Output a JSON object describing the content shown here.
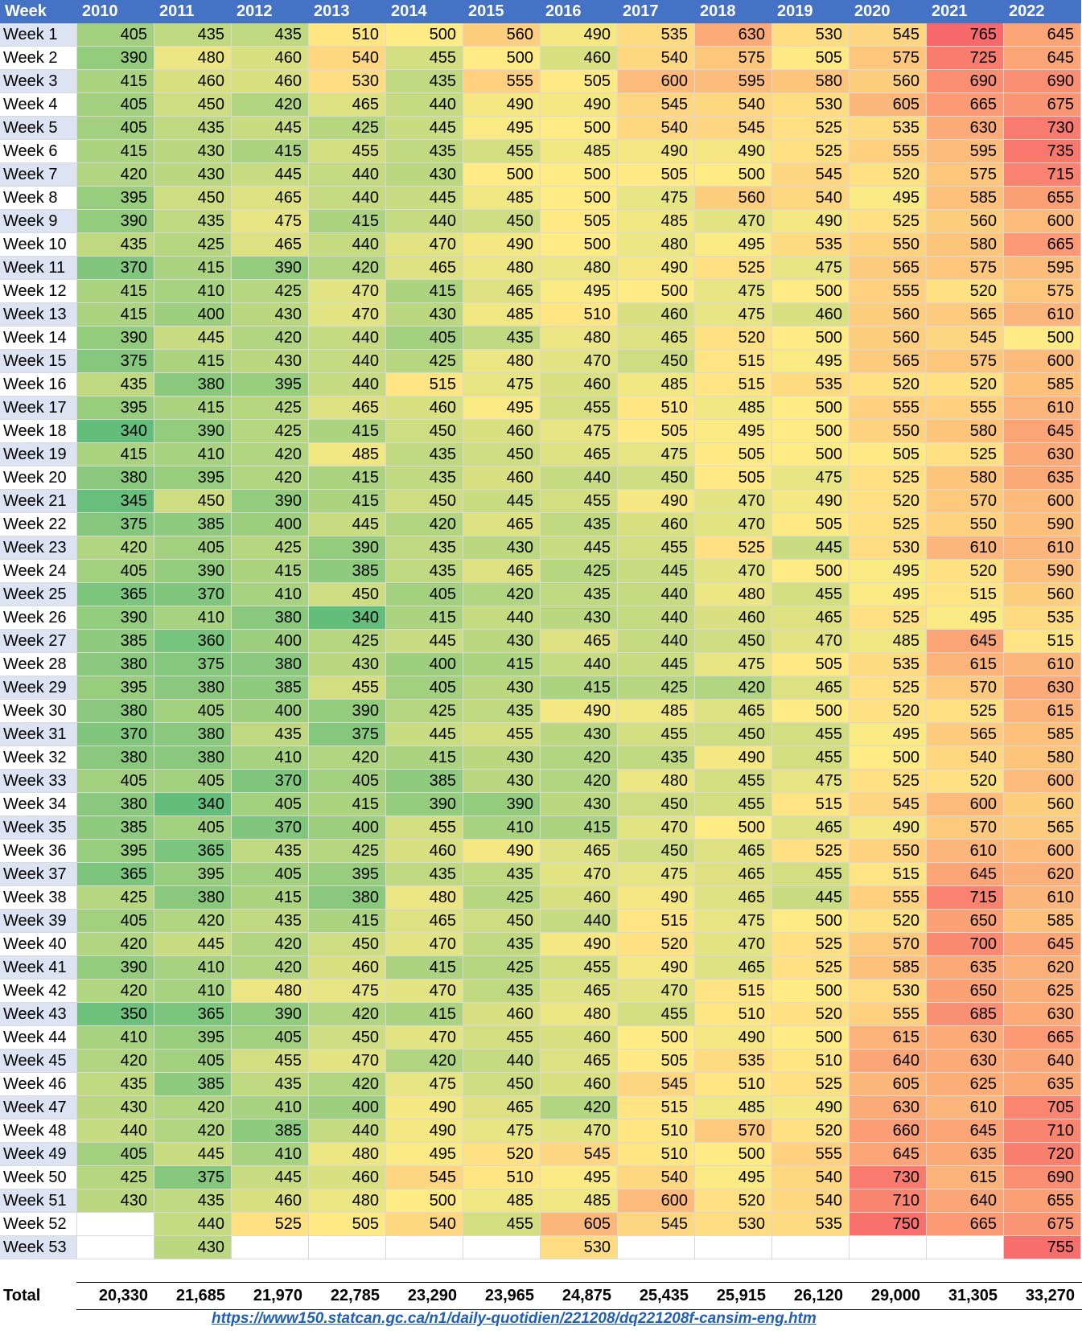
{
  "chart_data": {
    "type": "table",
    "header_label": "Week",
    "years": [
      "2010",
      "2011",
      "2012",
      "2013",
      "2014",
      "2015",
      "2016",
      "2017",
      "2018",
      "2019",
      "2020",
      "2021",
      "2022"
    ],
    "weeks": [
      "Week 1",
      "Week 2",
      "Week 3",
      "Week 4",
      "Week 5",
      "Week 6",
      "Week 7",
      "Week 8",
      "Week 9",
      "Week 10",
      "Week 11",
      "Week 12",
      "Week 13",
      "Week 14",
      "Week 15",
      "Week 16",
      "Week 17",
      "Week 18",
      "Week 19",
      "Week 20",
      "Week 21",
      "Week 22",
      "Week 23",
      "Week 24",
      "Week 25",
      "Week 26",
      "Week 27",
      "Week 28",
      "Week 29",
      "Week 30",
      "Week 31",
      "Week 32",
      "Week 33",
      "Week 34",
      "Week 35",
      "Week 36",
      "Week 37",
      "Week 38",
      "Week 39",
      "Week 40",
      "Week 41",
      "Week 42",
      "Week 43",
      "Week 44",
      "Week 45",
      "Week 46",
      "Week 47",
      "Week 48",
      "Week 49",
      "Week 50",
      "Week 51",
      "Week 52",
      "Week 53"
    ],
    "values": [
      [
        405,
        435,
        435,
        510,
        500,
        560,
        490,
        535,
        630,
        530,
        545,
        765,
        645
      ],
      [
        390,
        480,
        460,
        540,
        455,
        500,
        460,
        540,
        575,
        505,
        575,
        725,
        645
      ],
      [
        415,
        460,
        460,
        530,
        435,
        555,
        505,
        600,
        595,
        580,
        560,
        690,
        690
      ],
      [
        405,
        450,
        420,
        465,
        440,
        490,
        490,
        545,
        540,
        530,
        605,
        665,
        675
      ],
      [
        405,
        435,
        445,
        425,
        445,
        495,
        500,
        540,
        545,
        525,
        535,
        630,
        730
      ],
      [
        415,
        430,
        415,
        455,
        435,
        455,
        485,
        490,
        490,
        525,
        555,
        595,
        735
      ],
      [
        420,
        430,
        445,
        440,
        430,
        500,
        500,
        505,
        500,
        545,
        520,
        575,
        715
      ],
      [
        395,
        450,
        465,
        440,
        445,
        485,
        500,
        475,
        560,
        540,
        495,
        585,
        655
      ],
      [
        390,
        435,
        475,
        415,
        440,
        450,
        505,
        485,
        470,
        490,
        525,
        560,
        600
      ],
      [
        435,
        425,
        465,
        440,
        470,
        490,
        500,
        480,
        495,
        535,
        550,
        580,
        665
      ],
      [
        370,
        415,
        390,
        420,
        465,
        480,
        480,
        490,
        525,
        475,
        565,
        575,
        595
      ],
      [
        415,
        410,
        425,
        470,
        415,
        465,
        495,
        500,
        475,
        500,
        555,
        520,
        575
      ],
      [
        415,
        400,
        430,
        470,
        430,
        485,
        510,
        460,
        475,
        460,
        560,
        565,
        610
      ],
      [
        390,
        445,
        420,
        440,
        405,
        435,
        480,
        465,
        520,
        500,
        560,
        545,
        500
      ],
      [
        375,
        415,
        430,
        440,
        425,
        480,
        470,
        450,
        515,
        495,
        565,
        575,
        600
      ],
      [
        435,
        380,
        395,
        440,
        515,
        475,
        460,
        485,
        515,
        535,
        520,
        520,
        585
      ],
      [
        395,
        415,
        425,
        465,
        460,
        495,
        455,
        510,
        485,
        500,
        555,
        555,
        610
      ],
      [
        340,
        390,
        425,
        415,
        450,
        460,
        475,
        505,
        495,
        500,
        550,
        580,
        645
      ],
      [
        415,
        410,
        420,
        485,
        435,
        450,
        465,
        475,
        505,
        500,
        505,
        525,
        630
      ],
      [
        380,
        395,
        420,
        415,
        435,
        460,
        440,
        450,
        505,
        475,
        525,
        580,
        635
      ],
      [
        345,
        450,
        390,
        415,
        450,
        445,
        455,
        490,
        470,
        490,
        520,
        570,
        600
      ],
      [
        375,
        385,
        400,
        445,
        420,
        465,
        435,
        460,
        470,
        505,
        525,
        550,
        590
      ],
      [
        420,
        405,
        425,
        390,
        435,
        430,
        445,
        455,
        525,
        445,
        530,
        610,
        610
      ],
      [
        405,
        390,
        415,
        385,
        435,
        465,
        425,
        445,
        470,
        500,
        495,
        520,
        590
      ],
      [
        365,
        370,
        410,
        450,
        405,
        420,
        435,
        440,
        480,
        455,
        495,
        515,
        560
      ],
      [
        390,
        410,
        380,
        340,
        415,
        440,
        430,
        440,
        460,
        465,
        525,
        495,
        535
      ],
      [
        385,
        360,
        400,
        425,
        445,
        430,
        465,
        440,
        450,
        470,
        485,
        645,
        515
      ],
      [
        380,
        375,
        380,
        430,
        400,
        415,
        440,
        445,
        475,
        505,
        535,
        615,
        610
      ],
      [
        395,
        380,
        385,
        455,
        405,
        430,
        415,
        425,
        420,
        465,
        525,
        570,
        630
      ],
      [
        380,
        405,
        400,
        390,
        425,
        435,
        490,
        485,
        465,
        500,
        520,
        525,
        615
      ],
      [
        370,
        380,
        435,
        375,
        445,
        455,
        430,
        455,
        450,
        455,
        495,
        565,
        585
      ],
      [
        380,
        380,
        410,
        420,
        415,
        430,
        420,
        435,
        490,
        455,
        500,
        540,
        580
      ],
      [
        405,
        405,
        370,
        405,
        385,
        430,
        420,
        480,
        455,
        475,
        525,
        520,
        600
      ],
      [
        380,
        340,
        405,
        415,
        390,
        390,
        430,
        450,
        455,
        515,
        545,
        600,
        560
      ],
      [
        385,
        405,
        370,
        400,
        455,
        410,
        415,
        470,
        500,
        465,
        490,
        570,
        565
      ],
      [
        395,
        365,
        435,
        425,
        460,
        490,
        465,
        450,
        465,
        525,
        550,
        610,
        600
      ],
      [
        365,
        395,
        405,
        395,
        435,
        435,
        470,
        475,
        465,
        455,
        515,
        645,
        620
      ],
      [
        425,
        380,
        415,
        380,
        480,
        425,
        460,
        490,
        465,
        445,
        555,
        715,
        610
      ],
      [
        405,
        420,
        435,
        415,
        465,
        450,
        440,
        515,
        475,
        500,
        520,
        650,
        585
      ],
      [
        420,
        445,
        420,
        450,
        470,
        435,
        490,
        520,
        470,
        525,
        570,
        700,
        645
      ],
      [
        390,
        410,
        420,
        460,
        415,
        425,
        455,
        490,
        465,
        525,
        585,
        635,
        620
      ],
      [
        420,
        410,
        480,
        475,
        470,
        435,
        465,
        470,
        515,
        500,
        530,
        650,
        625
      ],
      [
        350,
        365,
        390,
        420,
        415,
        460,
        480,
        455,
        510,
        520,
        555,
        685,
        630
      ],
      [
        410,
        395,
        405,
        450,
        470,
        455,
        460,
        500,
        490,
        500,
        615,
        630,
        665
      ],
      [
        420,
        405,
        455,
        470,
        420,
        440,
        465,
        505,
        535,
        510,
        640,
        630,
        640
      ],
      [
        435,
        385,
        435,
        420,
        475,
        450,
        460,
        545,
        510,
        525,
        605,
        625,
        635
      ],
      [
        430,
        420,
        410,
        400,
        490,
        465,
        420,
        515,
        485,
        490,
        630,
        610,
        705
      ],
      [
        440,
        420,
        385,
        440,
        490,
        475,
        470,
        510,
        570,
        520,
        660,
        645,
        710
      ],
      [
        405,
        445,
        410,
        480,
        495,
        520,
        545,
        510,
        500,
        555,
        645,
        635,
        720
      ],
      [
        425,
        375,
        445,
        460,
        545,
        510,
        495,
        540,
        495,
        540,
        730,
        615,
        690
      ],
      [
        430,
        435,
        460,
        480,
        500,
        485,
        485,
        600,
        520,
        540,
        710,
        640,
        655
      ],
      [
        null,
        440,
        525,
        505,
        540,
        455,
        605,
        545,
        530,
        535,
        750,
        665,
        675
      ],
      [
        null,
        430,
        null,
        null,
        null,
        null,
        530,
        null,
        null,
        null,
        null,
        null,
        755
      ]
    ],
    "total_label": "Total",
    "totals": [
      "20,330",
      "21,685",
      "21,970",
      "22,785",
      "23,290",
      "23,965",
      "24,875",
      "25,435",
      "25,915",
      "26,120",
      "29,000",
      "31,305",
      "33,270"
    ],
    "color_scale": {
      "low": "#63be7b",
      "mid": "#ffeb84",
      "high": "#f8696b",
      "min": 340,
      "mid_value": 500,
      "max": 765
    },
    "source_url": "https://www150.statcan.gc.ca/n1/daily-quotidien/221208/dq221208f-cansim-eng.htm"
  }
}
